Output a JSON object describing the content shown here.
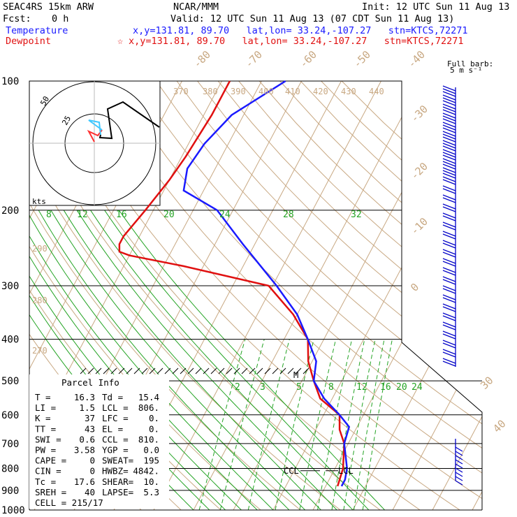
{
  "header": {
    "model": "SEAC4RS 15km ARW",
    "org": "NCAR/MMM",
    "init": "Init: 12 UTC Sun 11 Aug 13",
    "fcst_label": "Fcst:",
    "fcst_value": "0 h",
    "valid": "Valid: 12 UTC Sun 11 Aug 13 (07 CDT Sun 11 Aug 13)",
    "temperature_label": "Temperature",
    "temperature_info": "x,y=131.81, 89.70   lat,lon= 33.24,-107.27   stn=KTCS,72271",
    "dewpoint_label": "Dewpoint",
    "dewpoint_info": "x,y=131.81, 89.70   lat,lon= 33.24,-107.27   stn=KTCS,72271",
    "dewpoint_marker": "☆",
    "barb_note_1": "Full barb:",
    "barb_note_2": "5 m s⁻¹"
  },
  "colors": {
    "temperature": "#1a1aff",
    "dewpoint": "#e01010",
    "isotherm": "#c8a882",
    "mixing_ratio": "#23a323",
    "moist_adiabat": "#23a323",
    "wind_barb": "#0000c8"
  },
  "chart_data": {
    "type": "line",
    "subtype": "skew-T log-p sounding",
    "y_axis": {
      "label": "",
      "scale": "log",
      "ticks": [
        100,
        200,
        300,
        400,
        500,
        600,
        700,
        800,
        900,
        1000
      ]
    },
    "isotherm_labels": [
      "-80",
      "-70",
      "-60",
      "-50",
      "-40",
      "-30",
      "-20",
      "-10",
      "0",
      "30",
      "40"
    ],
    "theta_labels": [
      "370",
      "380",
      "390",
      "400",
      "410",
      "420",
      "430",
      "440",
      "290",
      "280",
      "270"
    ],
    "mixing_ratio_labels_upper": [
      "8",
      "12",
      "16",
      "20",
      "24",
      "28",
      "32"
    ],
    "mixing_ratio_labels_lower": [
      "2",
      "3",
      "5",
      "8",
      "12",
      "16",
      "20",
      "24"
    ],
    "series": [
      {
        "name": "Temperature",
        "x": [
          "-44",
          "-53",
          "-56",
          "-57",
          "-55",
          "-44",
          "-33",
          "-19",
          "-10",
          "-4",
          "1",
          "3",
          "8",
          "14",
          "18",
          "19",
          "23",
          "24",
          "24"
        ],
        "y": [
          100,
          120,
          140,
          160,
          180,
          200,
          240,
          300,
          350,
          400,
          450,
          500,
          550,
          600,
          640,
          700,
          800,
          850,
          880
        ]
      },
      {
        "name": "Dewpoint",
        "x": [
          "-58",
          "-58",
          "-59",
          "-60",
          "-62",
          "-64",
          "-64",
          "-63",
          "-60",
          "-45",
          "-21",
          "-11",
          "-4",
          "-1",
          "3",
          "7",
          "14",
          "16",
          "19",
          "22",
          "23"
        ],
        "y": [
          100,
          120,
          150,
          170,
          200,
          230,
          240,
          250,
          255,
          270,
          300,
          350,
          400,
          450,
          500,
          550,
          600,
          650,
          700,
          800,
          880
        ]
      }
    ],
    "hodograph": {
      "rings": [
        "25",
        "50"
      ],
      "unit": "kts"
    },
    "ccl_label": "CCL",
    "lcl_label": "LCL",
    "m_label": "M"
  },
  "parcel_info": {
    "title": "Parcel Info",
    "rows": [
      [
        "T  =",
        "16.3",
        "Td =",
        "15.4"
      ],
      [
        "LI =",
        "1.5",
        "LCL =",
        "806."
      ],
      [
        "K  =",
        "37",
        "LFC =",
        "0."
      ],
      [
        "TT =",
        "43",
        "EL  =",
        "0."
      ],
      [
        "SWI =",
        "0.6",
        "CCL =",
        "810."
      ],
      [
        "PW =",
        "3.58",
        "YGP =",
        "0.0"
      ],
      [
        "CAPE =",
        "0",
        "SWEAT=",
        "195"
      ],
      [
        "CIN =",
        "0",
        "HWBZ=",
        "4842."
      ],
      [
        "Tc =",
        "17.6",
        "SHEAR=",
        "10."
      ],
      [
        "SREH =",
        "40",
        "LAPSE=",
        "5.3"
      ]
    ],
    "cell": "CELL = 215/17"
  }
}
